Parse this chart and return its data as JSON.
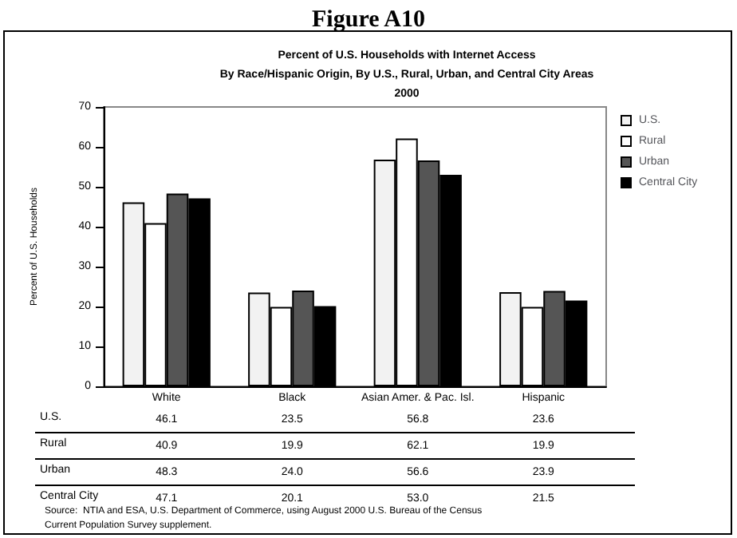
{
  "chart_data": {
    "type": "bar",
    "title": "Figure A10",
    "subtitle": "Percent of U.S. Households with Internet Access\nBy Race/Hispanic Origin, By U.S., Rural, Urban, and Central City Areas\n2000",
    "ylabel": "Percent of U.S. Households",
    "categories": [
      "White",
      "Black",
      "Asian Amer. & Pac. Isl.",
      "Hispanic"
    ],
    "series": [
      {
        "name": "U.S.",
        "color": "#f2f2f2",
        "values": [
          46.1,
          23.5,
          56.8,
          23.6
        ],
        "value_labels": [
          "46.1",
          "23.5",
          "56.8",
          "23.6"
        ]
      },
      {
        "name": "Rural",
        "color": "#ffffff",
        "values": [
          40.9,
          19.9,
          62.1,
          19.9
        ],
        "value_labels": [
          "40.9",
          "19.9",
          "62.1",
          "19.9"
        ]
      },
      {
        "name": "Urban",
        "color": "#555555",
        "values": [
          48.3,
          24.0,
          56.6,
          23.9
        ],
        "value_labels": [
          "48.3",
          "24.0",
          "56.6",
          "23.9"
        ]
      },
      {
        "name": "Central City",
        "color": "#000000",
        "values": [
          47.1,
          20.1,
          53.0,
          21.5
        ],
        "value_labels": [
          "47.1",
          "20.1",
          "53.0",
          "21.5"
        ]
      }
    ],
    "ylim": [
      0,
      70
    ],
    "yticks": [
      0,
      10,
      20,
      30,
      40,
      50,
      60,
      70
    ],
    "grid": false,
    "legend": "top right",
    "annotations": [
      "Source:  NTIA and ESA, U.S. Department of Commerce, using August 2000 U.S. Bureau of the Census\nCurrent Population Survey supplement."
    ]
  }
}
